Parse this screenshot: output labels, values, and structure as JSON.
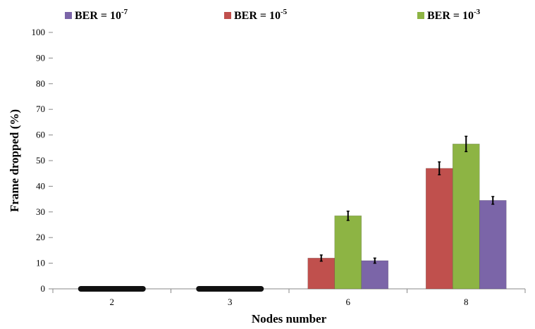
{
  "chart_data": {
    "type": "bar",
    "xlabel": "Nodes number",
    "ylabel": "Frame dropped (%)",
    "ylim": [
      0,
      100
    ],
    "yticks": [
      "0",
      "10",
      "20",
      "30",
      "40",
      "50",
      "60",
      "70",
      "80",
      "90",
      "100"
    ],
    "categories": [
      "2",
      "3",
      "6",
      "8"
    ],
    "legend_position": "top",
    "series": [
      {
        "name": "BER = 10",
        "exponent": "-5",
        "color": "#c0504d",
        "values": [
          0,
          0,
          12,
          47
        ],
        "errors": [
          0,
          0,
          1.2,
          2.5
        ]
      },
      {
        "name": "BER = 10",
        "exponent": "-3",
        "color": "#8db444",
        "values": [
          0,
          0,
          28.5,
          56.5
        ],
        "errors": [
          0,
          0,
          1.8,
          3
        ]
      },
      {
        "name": "BER = 10",
        "exponent": "-7",
        "color": "#7b65a8",
        "values": [
          0,
          0,
          11,
          34.5
        ],
        "errors": [
          0,
          0,
          1.0,
          1.5
        ]
      }
    ],
    "legend_order": [
      2,
      0,
      1
    ]
  }
}
